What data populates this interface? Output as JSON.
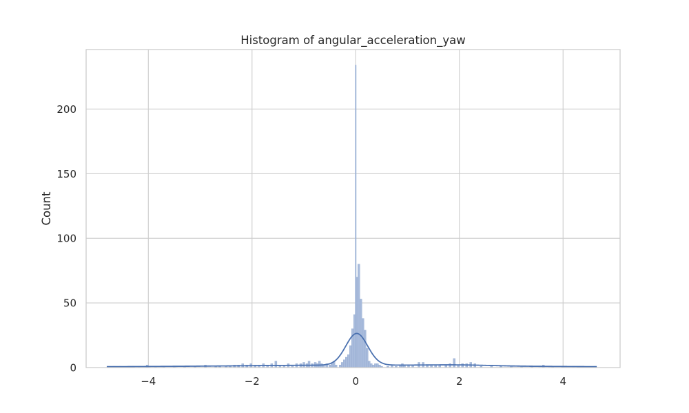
{
  "chart_data": {
    "type": "histogram",
    "title": "Histogram of angular_acceleration_yaw",
    "xlabel": "",
    "ylabel": "Count",
    "xlim": [
      -5.2,
      5.1
    ],
    "ylim": [
      0,
      246
    ],
    "xticks": [
      -4,
      -2,
      0,
      2,
      4
    ],
    "xtick_labels": [
      "−4",
      "−2",
      "0",
      "2",
      "4"
    ],
    "yticks": [
      0,
      50,
      100,
      150,
      200
    ],
    "ytick_labels": [
      "0",
      "50",
      "100",
      "150",
      "200"
    ],
    "grid": true,
    "bin_width": 0.04,
    "bins": [
      {
        "x": -4.78,
        "count": 1
      },
      {
        "x": -4.66,
        "count": 1
      },
      {
        "x": -4.54,
        "count": 1
      },
      {
        "x": -4.42,
        "count": 1
      },
      {
        "x": -4.3,
        "count": 1
      },
      {
        "x": -4.18,
        "count": 1
      },
      {
        "x": -4.02,
        "count": 2
      },
      {
        "x": -3.86,
        "count": 1
      },
      {
        "x": -3.7,
        "count": 1
      },
      {
        "x": -3.5,
        "count": 1
      },
      {
        "x": -3.3,
        "count": 1
      },
      {
        "x": -3.1,
        "count": 1
      },
      {
        "x": -2.9,
        "count": 2
      },
      {
        "x": -2.7,
        "count": 1
      },
      {
        "x": -2.62,
        "count": 1
      },
      {
        "x": -2.5,
        "count": 1
      },
      {
        "x": -2.42,
        "count": 1
      },
      {
        "x": -2.34,
        "count": 2
      },
      {
        "x": -2.26,
        "count": 2
      },
      {
        "x": -2.18,
        "count": 3
      },
      {
        "x": -2.1,
        "count": 2
      },
      {
        "x": -2.02,
        "count": 3
      },
      {
        "x": -1.94,
        "count": 2
      },
      {
        "x": -1.86,
        "count": 2
      },
      {
        "x": -1.78,
        "count": 3
      },
      {
        "x": -1.7,
        "count": 2
      },
      {
        "x": -1.62,
        "count": 3
      },
      {
        "x": -1.54,
        "count": 5
      },
      {
        "x": -1.46,
        "count": 2
      },
      {
        "x": -1.38,
        "count": 2
      },
      {
        "x": -1.3,
        "count": 3
      },
      {
        "x": -1.22,
        "count": 2
      },
      {
        "x": -1.14,
        "count": 3
      },
      {
        "x": -1.06,
        "count": 3
      },
      {
        "x": -1.0,
        "count": 4
      },
      {
        "x": -0.94,
        "count": 3
      },
      {
        "x": -0.9,
        "count": 5
      },
      {
        "x": -0.84,
        "count": 3
      },
      {
        "x": -0.78,
        "count": 4
      },
      {
        "x": -0.74,
        "count": 3
      },
      {
        "x": -0.7,
        "count": 5
      },
      {
        "x": -0.66,
        "count": 3
      },
      {
        "x": -0.62,
        "count": 2
      },
      {
        "x": -0.56,
        "count": 3
      },
      {
        "x": -0.5,
        "count": 2
      },
      {
        "x": -0.46,
        "count": 3
      },
      {
        "x": -0.42,
        "count": 5
      },
      {
        "x": -0.38,
        "count": 2
      },
      {
        "x": -0.3,
        "count": 2
      },
      {
        "x": -0.26,
        "count": 4
      },
      {
        "x": -0.22,
        "count": 6
      },
      {
        "x": -0.18,
        "count": 8
      },
      {
        "x": -0.14,
        "count": 10
      },
      {
        "x": -0.1,
        "count": 17
      },
      {
        "x": -0.06,
        "count": 30
      },
      {
        "x": -0.02,
        "count": 41
      },
      {
        "x": 0.02,
        "count": 70
      },
      {
        "x": 0.06,
        "count": 80
      },
      {
        "x": 0.1,
        "count": 53
      },
      {
        "x": 0.14,
        "count": 38
      },
      {
        "x": 0.18,
        "count": 29
      },
      {
        "x": 0.22,
        "count": 15
      },
      {
        "x": 0.26,
        "count": 5
      },
      {
        "x": 0.3,
        "count": 3
      },
      {
        "x": 0.34,
        "count": 2
      },
      {
        "x": 0.38,
        "count": 3
      },
      {
        "x": 0.42,
        "count": 3
      },
      {
        "x": 0.46,
        "count": 2
      },
      {
        "x": 0.5,
        "count": 1
      },
      {
        "x": 0.62,
        "count": 1
      },
      {
        "x": 0.7,
        "count": 2
      },
      {
        "x": 0.78,
        "count": 1
      },
      {
        "x": 0.86,
        "count": 2
      },
      {
        "x": 0.9,
        "count": 3
      },
      {
        "x": 0.94,
        "count": 2
      },
      {
        "x": 1.02,
        "count": 2
      },
      {
        "x": 1.1,
        "count": 2
      },
      {
        "x": 1.22,
        "count": 4
      },
      {
        "x": 1.3,
        "count": 4
      },
      {
        "x": 1.38,
        "count": 2
      },
      {
        "x": 1.46,
        "count": 2
      },
      {
        "x": 1.54,
        "count": 2
      },
      {
        "x": 1.62,
        "count": 2
      },
      {
        "x": 1.74,
        "count": 2
      },
      {
        "x": 1.82,
        "count": 3
      },
      {
        "x": 1.9,
        "count": 7
      },
      {
        "x": 1.98,
        "count": 2
      },
      {
        "x": 2.06,
        "count": 3
      },
      {
        "x": 2.14,
        "count": 3
      },
      {
        "x": 2.22,
        "count": 4
      },
      {
        "x": 2.3,
        "count": 3
      },
      {
        "x": 2.42,
        "count": 1
      },
      {
        "x": 2.62,
        "count": 2
      },
      {
        "x": 2.8,
        "count": 1
      },
      {
        "x": 3.0,
        "count": 1
      },
      {
        "x": 3.2,
        "count": 1
      },
      {
        "x": 3.4,
        "count": 1
      },
      {
        "x": 3.62,
        "count": 2
      },
      {
        "x": 3.8,
        "count": 1
      },
      {
        "x": 4.0,
        "count": 1
      },
      {
        "x": 4.2,
        "count": 1
      },
      {
        "x": 4.42,
        "count": 1
      },
      {
        "x": 4.62,
        "count": 1
      }
    ],
    "spike": {
      "x": 0.0,
      "count": 234,
      "width": 0.02
    },
    "kde": {
      "baseline": 1.5,
      "peak_x": 0.02,
      "peak_height": 24.5,
      "sigma": 0.21,
      "side_bump_x": 2.0,
      "side_bump_height": 0.6,
      "side_bump_sigma": 0.6
    },
    "colors": {
      "bar_fill": "#a9bcdc",
      "bar_edge": "#8ea6cf",
      "kde_line": "#4c72b0",
      "grid": "#cccccc",
      "background": "#ffffff"
    }
  }
}
